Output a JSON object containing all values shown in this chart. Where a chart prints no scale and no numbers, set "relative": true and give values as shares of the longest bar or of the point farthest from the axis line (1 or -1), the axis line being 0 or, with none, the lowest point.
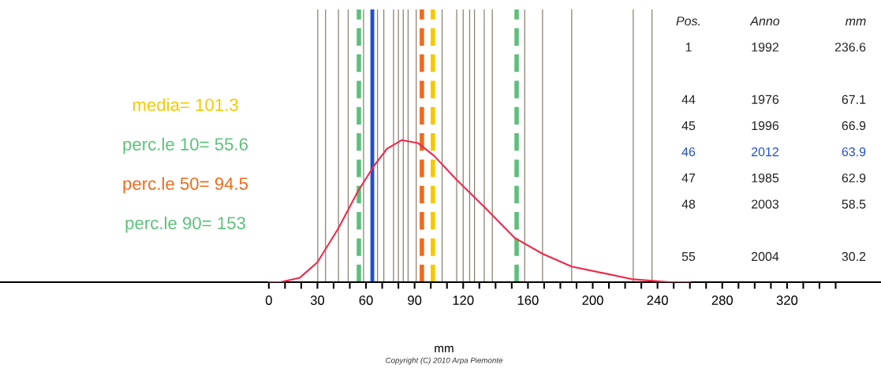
{
  "chart_data": {
    "type": "line",
    "relative": true,
    "xlabel": "mm",
    "x": [
      0,
      7,
      19,
      30,
      43,
      55,
      65,
      73,
      82,
      92,
      102,
      116,
      133,
      152,
      169,
      187,
      225,
      248,
      260
    ],
    "series": [
      {
        "color": "#f0284a",
        "values": [
          0,
          0,
          0.03,
          0.14,
          0.38,
          0.64,
          0.82,
          0.94,
          1.0,
          0.98,
          0.89,
          0.72,
          0.53,
          0.31,
          0.2,
          0.11,
          0.02,
          0,
          0
        ]
      }
    ],
    "xlim": [
      -166,
      378
    ],
    "xticks": [
      0,
      {
        "value": 10,
        "label": null
      },
      {
        "value": 20,
        "label": null
      },
      30,
      {
        "value": 40,
        "label": null
      },
      {
        "value": 50,
        "label": null
      },
      60,
      {
        "value": 70,
        "label": null
      },
      {
        "value": 80,
        "label": null
      },
      90,
      {
        "value": 100,
        "label": null
      },
      {
        "value": 110,
        "label": null
      },
      120,
      {
        "value": 130,
        "label": null
      },
      {
        "value": 140,
        "label": null
      },
      {
        "value": 150,
        "label": null
      },
      160,
      {
        "value": 170,
        "label": null
      },
      {
        "value": 180,
        "label": null
      },
      {
        "value": 190,
        "label": null
      },
      200,
      {
        "value": 210,
        "label": null
      },
      {
        "value": 220,
        "label": null
      },
      {
        "value": 230,
        "label": null
      },
      240,
      {
        "value": 250,
        "label": null
      },
      {
        "value": 260,
        "label": null
      },
      {
        "value": 270,
        "label": null
      },
      280,
      {
        "value": 290,
        "label": null
      },
      {
        "value": 300,
        "label": null
      },
      {
        "value": 310,
        "label": null
      },
      320,
      {
        "value": 330,
        "label": null
      },
      {
        "value": 340,
        "label": null
      },
      {
        "value": 350,
        "label": null
      }
    ],
    "grid": false,
    "legend": false,
    "ref_lines": [
      {
        "axis": "x",
        "value": 101.3,
        "label": "media= 101.3",
        "color": "#f5c800",
        "line_style": "dashed"
      },
      {
        "axis": "x",
        "value": 55.6,
        "label": "perc.le 10= 55.6",
        "color": "#5cc07a",
        "line_style": "dashed"
      },
      {
        "axis": "x",
        "value": 94.5,
        "label": "perc.le 50= 94.5",
        "color": "#f06a1a",
        "line_style": "dashed"
      },
      {
        "axis": "x",
        "value": 153,
        "label": "perc.le 90= 153",
        "color": "#5cc07a",
        "line_style": "dashed"
      },
      {
        "axis": "x",
        "value": 63.9,
        "color": "#1f4fd0",
        "line_style": "solid"
      },
      {
        "axis": "x",
        "value": 236.6,
        "color": "#8a8070"
      },
      {
        "axis": "x",
        "value": 30.2,
        "color": "#8a8070"
      },
      {
        "axis": "x",
        "value": 67.1,
        "color": "#8a8070"
      },
      {
        "axis": "x",
        "value": 58.5,
        "color": "#8a8070"
      },
      {
        "axis": "x",
        "value": 35,
        "color": "#8a8070"
      },
      {
        "axis": "x",
        "value": 43,
        "color": "#8a8070"
      },
      {
        "axis": "x",
        "value": 49,
        "color": "#8a8070"
      },
      {
        "axis": "x",
        "value": 71,
        "color": "#8a8070"
      },
      {
        "axis": "x",
        "value": 77,
        "color": "#8a8070"
      },
      {
        "axis": "x",
        "value": 80,
        "color": "#8a8070"
      },
      {
        "axis": "x",
        "value": 83,
        "color": "#8a8070"
      },
      {
        "axis": "x",
        "value": 86,
        "color": "#8a8070"
      },
      {
        "axis": "x",
        "value": 91,
        "color": "#8a8070"
      },
      {
        "axis": "x",
        "value": 107,
        "color": "#8a8070"
      },
      {
        "axis": "x",
        "value": 116,
        "color": "#8a8070"
      },
      {
        "axis": "x",
        "value": 120,
        "color": "#8a8070"
      },
      {
        "axis": "x",
        "value": 124,
        "color": "#8a8070"
      },
      {
        "axis": "x",
        "value": 127,
        "color": "#8a8070"
      },
      {
        "axis": "x",
        "value": 133,
        "color": "#8a8070"
      },
      {
        "axis": "x",
        "value": 138,
        "color": "#8a8070"
      },
      {
        "axis": "x",
        "value": 158,
        "color": "#8a8070"
      },
      {
        "axis": "x",
        "value": 169,
        "color": "#8a8070"
      },
      {
        "axis": "x",
        "value": 187,
        "color": "#8a8070"
      },
      {
        "axis": "x",
        "value": 225,
        "color": "#8a8070"
      }
    ],
    "annotations": [
      "Copyright (C) 2010 Arpa Piemonte",
      "Pos.",
      "Anno",
      "mm",
      "1",
      "1992",
      "236.6",
      "44",
      "1976",
      "67.1",
      "45",
      "1996",
      "66.9",
      "46",
      "2012",
      "63.9",
      "47",
      "1985",
      "62.9",
      "48",
      "2003",
      "58.5",
      "55",
      "2004",
      "30.2"
    ]
  }
}
